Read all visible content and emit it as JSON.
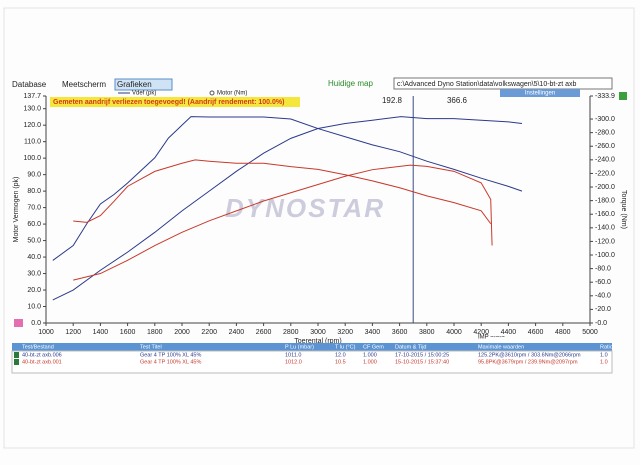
{
  "toolbar": {
    "tabs": [
      "Database",
      "Meetscherm",
      "Grafieken"
    ],
    "folder_label": "Huidige map",
    "folder_path": "c:\\Advanced Dyno Station\\data\\volkswagen\\5\\10-bt-zt axb",
    "button": "Instellingen"
  },
  "message": "Gemeten aandrijf verliezen toegevoegd! (Aandrijf rendement: 100.0%)",
  "cursor_readouts": [
    "192.8",
    "366.6"
  ],
  "logo": "DYNOSTAR",
  "imp_label": "IMP ~-~-~",
  "chart_data": {
    "type": "line",
    "legend": [
      "Vdef (pk)",
      "Motor (Nm)"
    ],
    "xlabel": "Toerental (rpm)",
    "ylabel": "Motor Vermogen (pk)",
    "y2label": "Torque (Nm)",
    "xlim": [
      1000,
      5000
    ],
    "xticks": [
      1000,
      1200,
      1400,
      1600,
      1800,
      2000,
      2200,
      2400,
      2600,
      2800,
      3000,
      3200,
      3400,
      3600,
      3800,
      4000,
      4200,
      4400,
      4600,
      4800,
      5000
    ],
    "ylim": [
      0,
      137.7
    ],
    "yticks": [
      {
        "value": 0,
        "label": "0.0"
      },
      {
        "value": 10,
        "label": "10.0"
      },
      {
        "value": 20,
        "label": "20.0"
      },
      {
        "value": 30,
        "label": "30.0"
      },
      {
        "value": 40,
        "label": "40.0"
      },
      {
        "value": 50,
        "label": "50.0"
      },
      {
        "value": 60,
        "label": "60.0"
      },
      {
        "value": 70,
        "label": "70.0"
      },
      {
        "value": 80,
        "label": "80.0"
      },
      {
        "value": 90,
        "label": "90.0"
      },
      {
        "value": 100,
        "label": "100.0"
      },
      {
        "value": 110,
        "label": "110.0"
      },
      {
        "value": 120,
        "label": "120.0"
      },
      {
        "value": 130,
        "label": "130.0"
      },
      137.7
    ],
    "y2lim": [
      0,
      333.9
    ],
    "y2ticks": [
      {
        "value": 0,
        "label": "-0.0"
      },
      {
        "value": 20,
        "label": "-20.0"
      },
      {
        "value": 40,
        "label": "-40.0"
      },
      {
        "value": 60,
        "label": "-60.0"
      },
      {
        "value": 80,
        "label": "-80.0"
      },
      {
        "value": 100,
        "label": "-100.0"
      },
      {
        "value": 120,
        "label": "-120.0"
      },
      {
        "value": 140,
        "label": "-140.0"
      },
      {
        "value": 160,
        "label": "-160.0"
      },
      {
        "value": 180,
        "label": "-180.0"
      },
      {
        "value": 200,
        "label": "-200.0"
      },
      {
        "value": 220,
        "label": "-220.0"
      },
      {
        "value": 240,
        "label": "-240.0"
      },
      {
        "value": 260,
        "label": "-260.0"
      },
      {
        "value": 280,
        "label": "-280.0"
      },
      {
        "value": 300,
        "label": "-300.0"
      },
      {
        "value": 333.9,
        "label": "-333.9"
      }
    ],
    "cursor_x": 3700,
    "series": [
      {
        "name": "40-bt-zt axb.006",
        "color": "#2b3a8c",
        "x": [
          1050,
          1200,
          1400,
          1600,
          1800,
          2000,
          2200,
          2400,
          2600,
          2800,
          3000,
          3200,
          3400,
          3610,
          3800,
          4000,
          4200,
          4400,
          4500
        ],
        "values": [
          14,
          20,
          32,
          43,
          55,
          68,
          80,
          92,
          103,
          112,
          118,
          121,
          123,
          125.2,
          124,
          124,
          123,
          122,
          121
        ]
      },
      {
        "name": "40-bt-zt axb.006",
        "color": "#2b3a8c",
        "axis": "y2",
        "x": [
          1050,
          1200,
          1300,
          1400,
          1500,
          1600,
          1800,
          1900,
          2000,
          2066,
          2200,
          2400,
          2600,
          2800,
          3000,
          3200,
          3400,
          3600,
          3800,
          4000,
          4200,
          4400,
          4500
        ],
        "values": [
          92,
          114,
          146,
          175,
          189,
          206,
          243,
          272,
          291,
          303.6,
          303,
          303,
          303,
          300,
          286,
          274,
          262,
          252,
          238,
          226,
          213,
          201,
          194
        ]
      },
      {
        "name": "40-bt-zt axb.001",
        "color": "#c8392b",
        "x": [
          1200,
          1400,
          1600,
          1800,
          2000,
          2200,
          2400,
          2600,
          2800,
          3000,
          3200,
          3400,
          3679,
          3800,
          4000,
          4200,
          4270,
          4280
        ],
        "values": [
          26,
          30,
          38,
          47,
          55,
          62,
          68,
          74,
          79,
          84,
          89,
          93,
          95.8,
          95,
          92,
          85,
          75,
          47
        ]
      },
      {
        "name": "40-bt-zt axb.001",
        "color": "#c8392b",
        "axis": "y2",
        "x": [
          1200,
          1300,
          1400,
          1500,
          1600,
          1800,
          2000,
          2097,
          2200,
          2400,
          2600,
          2800,
          3000,
          3200,
          3400,
          3600,
          3800,
          4000,
          4200,
          4270
        ],
        "values": [
          150,
          148,
          158,
          179,
          201,
          223,
          235,
          239.9,
          238,
          235,
          235,
          230,
          226,
          218,
          209,
          199,
          187,
          177,
          165,
          146
        ]
      }
    ]
  },
  "table": {
    "headers": [
      "Test/Bestand",
      "Test Titel",
      "P Lu (mbar)",
      "T lu (°C)",
      "CF Gem",
      "Datum & Tijd",
      "Maximale waarden",
      "Ratio"
    ],
    "rows": [
      [
        "Gear 4 TP 100% XL 45%",
        "1011.0",
        "12.0",
        "1.000",
        "17-10-2015 / 15:00:25",
        "125.2PK@3610rpm / 303.6Nm@2066rpm",
        "1.0"
      ],
      [
        "Gear 4 TP 100% XL 45%",
        "1012.0",
        "10.5",
        "1.000",
        "15-10-2015 / 15:37:40",
        "95.8PK@3679rpm / 239.9Nm@2097rpm",
        "1.0"
      ]
    ]
  }
}
